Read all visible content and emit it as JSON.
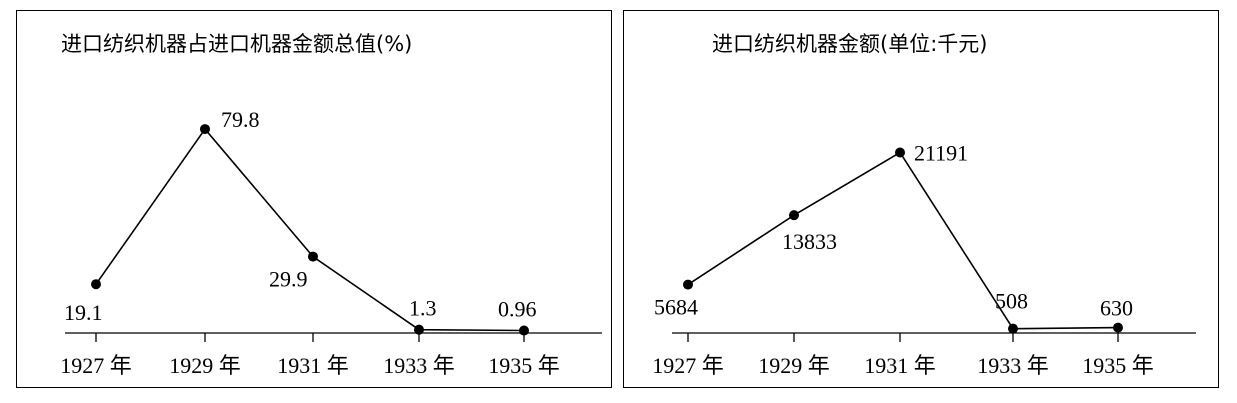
{
  "chart_data": [
    {
      "type": "line",
      "title": "进口纺织机器占进口机器金额总值(%)",
      "categories": [
        "1927 年",
        "1929 年",
        "1931 年",
        "1933 年",
        "1935 年"
      ],
      "values": [
        19.1,
        79.8,
        29.9,
        1.3,
        0.96
      ],
      "data_labels": [
        "19.1",
        "79.8",
        "29.9",
        "1.3",
        "0.96"
      ],
      "xlabel": "",
      "ylabel": "",
      "ylim": [
        0,
        90
      ],
      "grid": false,
      "legend": "none"
    },
    {
      "type": "line",
      "title": "进口纺织机器金额(单位:千元)",
      "categories": [
        "1927 年",
        "1929 年",
        "1931 年",
        "1933 年",
        "1935 年"
      ],
      "values": [
        5684,
        13833,
        21191,
        508,
        630
      ],
      "data_labels": [
        "5684",
        "13833",
        "21191",
        "508",
        "630"
      ],
      "xlabel": "",
      "ylabel": "",
      "ylim": [
        0,
        27000
      ],
      "grid": false,
      "legend": "none"
    }
  ]
}
